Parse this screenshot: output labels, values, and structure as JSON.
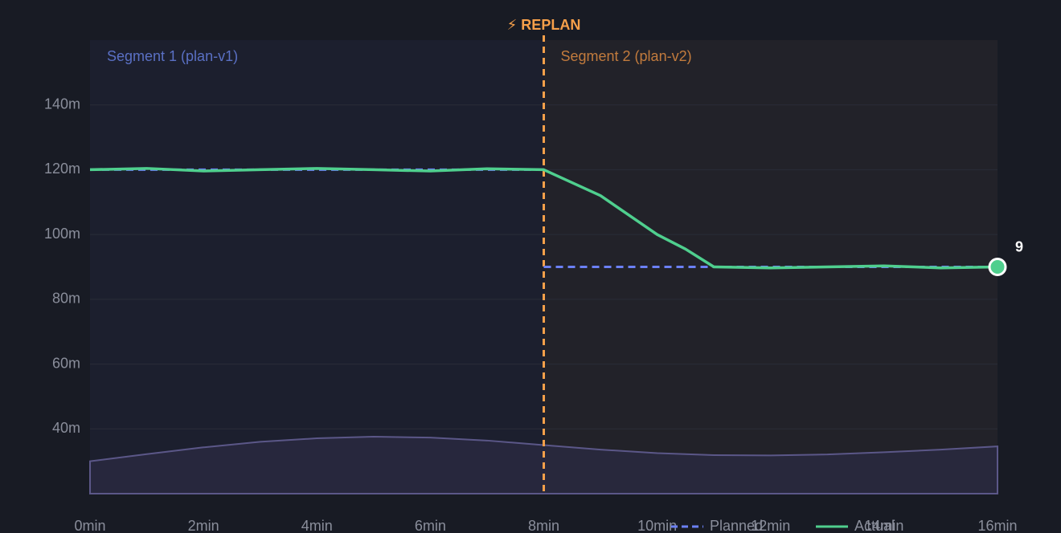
{
  "chart_data": {
    "type": "line",
    "xlim": [
      0,
      16
    ],
    "xticks": [
      {
        "value": 0,
        "label": "0min"
      },
      {
        "value": 2,
        "label": "2min"
      },
      {
        "value": 4,
        "label": "4min"
      },
      {
        "value": 6,
        "label": "6min"
      },
      {
        "value": 8,
        "label": "8min"
      },
      {
        "value": 10,
        "label": "10min"
      },
      {
        "value": 12,
        "label": "12min"
      },
      {
        "value": 14,
        "label": "14min"
      },
      {
        "value": 16,
        "label": "16min"
      }
    ],
    "ylim": [
      20,
      160
    ],
    "yticks": [
      {
        "value": 40,
        "label": "40m"
      },
      {
        "value": 60,
        "label": "60m"
      },
      {
        "value": 80,
        "label": "80m"
      },
      {
        "value": 100,
        "label": "100m"
      },
      {
        "value": 120,
        "label": "120m"
      },
      {
        "value": 140,
        "label": "140m"
      }
    ],
    "grid": true,
    "regions": [
      {
        "label": "Segment 1 (plan-v1)",
        "start": 0,
        "end": 8,
        "color": "#1c1f2e",
        "label_color": "#5a70c4"
      },
      {
        "label": "Segment 2 (plan-v2)",
        "start": 8,
        "end": 16,
        "color": "#222229",
        "label_color": "#c27b3d"
      }
    ],
    "replan": {
      "label": "⚡ REPLAN",
      "x": 8,
      "color": "#f7a04a"
    },
    "background_area": {
      "color": "#5b5788",
      "fill": "#29293f",
      "x": [
        0,
        1,
        2,
        3,
        4,
        5,
        6,
        7,
        8,
        9,
        10,
        11,
        12,
        13,
        14,
        15,
        16
      ],
      "values": [
        30,
        32.2,
        34.3,
        36,
        37.1,
        37.6,
        37.3,
        36.4,
        35,
        33.6,
        32.5,
        31.9,
        31.8,
        32.1,
        32.8,
        33.6,
        34.6
      ]
    },
    "series": [
      {
        "name": "Planned",
        "color": "#6b80f5",
        "dashed": true,
        "x": [
          0,
          8,
          8,
          8,
          16
        ],
        "values": [
          120,
          120,
          null,
          90,
          90
        ]
      },
      {
        "name": "Actual",
        "color": "#4fcf8e",
        "dashed": false,
        "x": [
          0,
          1,
          2,
          3,
          4,
          5,
          6,
          7,
          8,
          8.5,
          9,
          9.5,
          10,
          10.5,
          11,
          12,
          13,
          14,
          15,
          16
        ],
        "values": [
          120,
          120.4,
          119.6,
          120,
          120.4,
          120,
          119.6,
          120.3,
          120,
          116,
          112,
          106,
          100,
          95.5,
          90,
          89.7,
          90,
          90.3,
          89.7,
          90
        ]
      }
    ],
    "annotations": [
      {
        "text": "9"
      }
    ]
  }
}
